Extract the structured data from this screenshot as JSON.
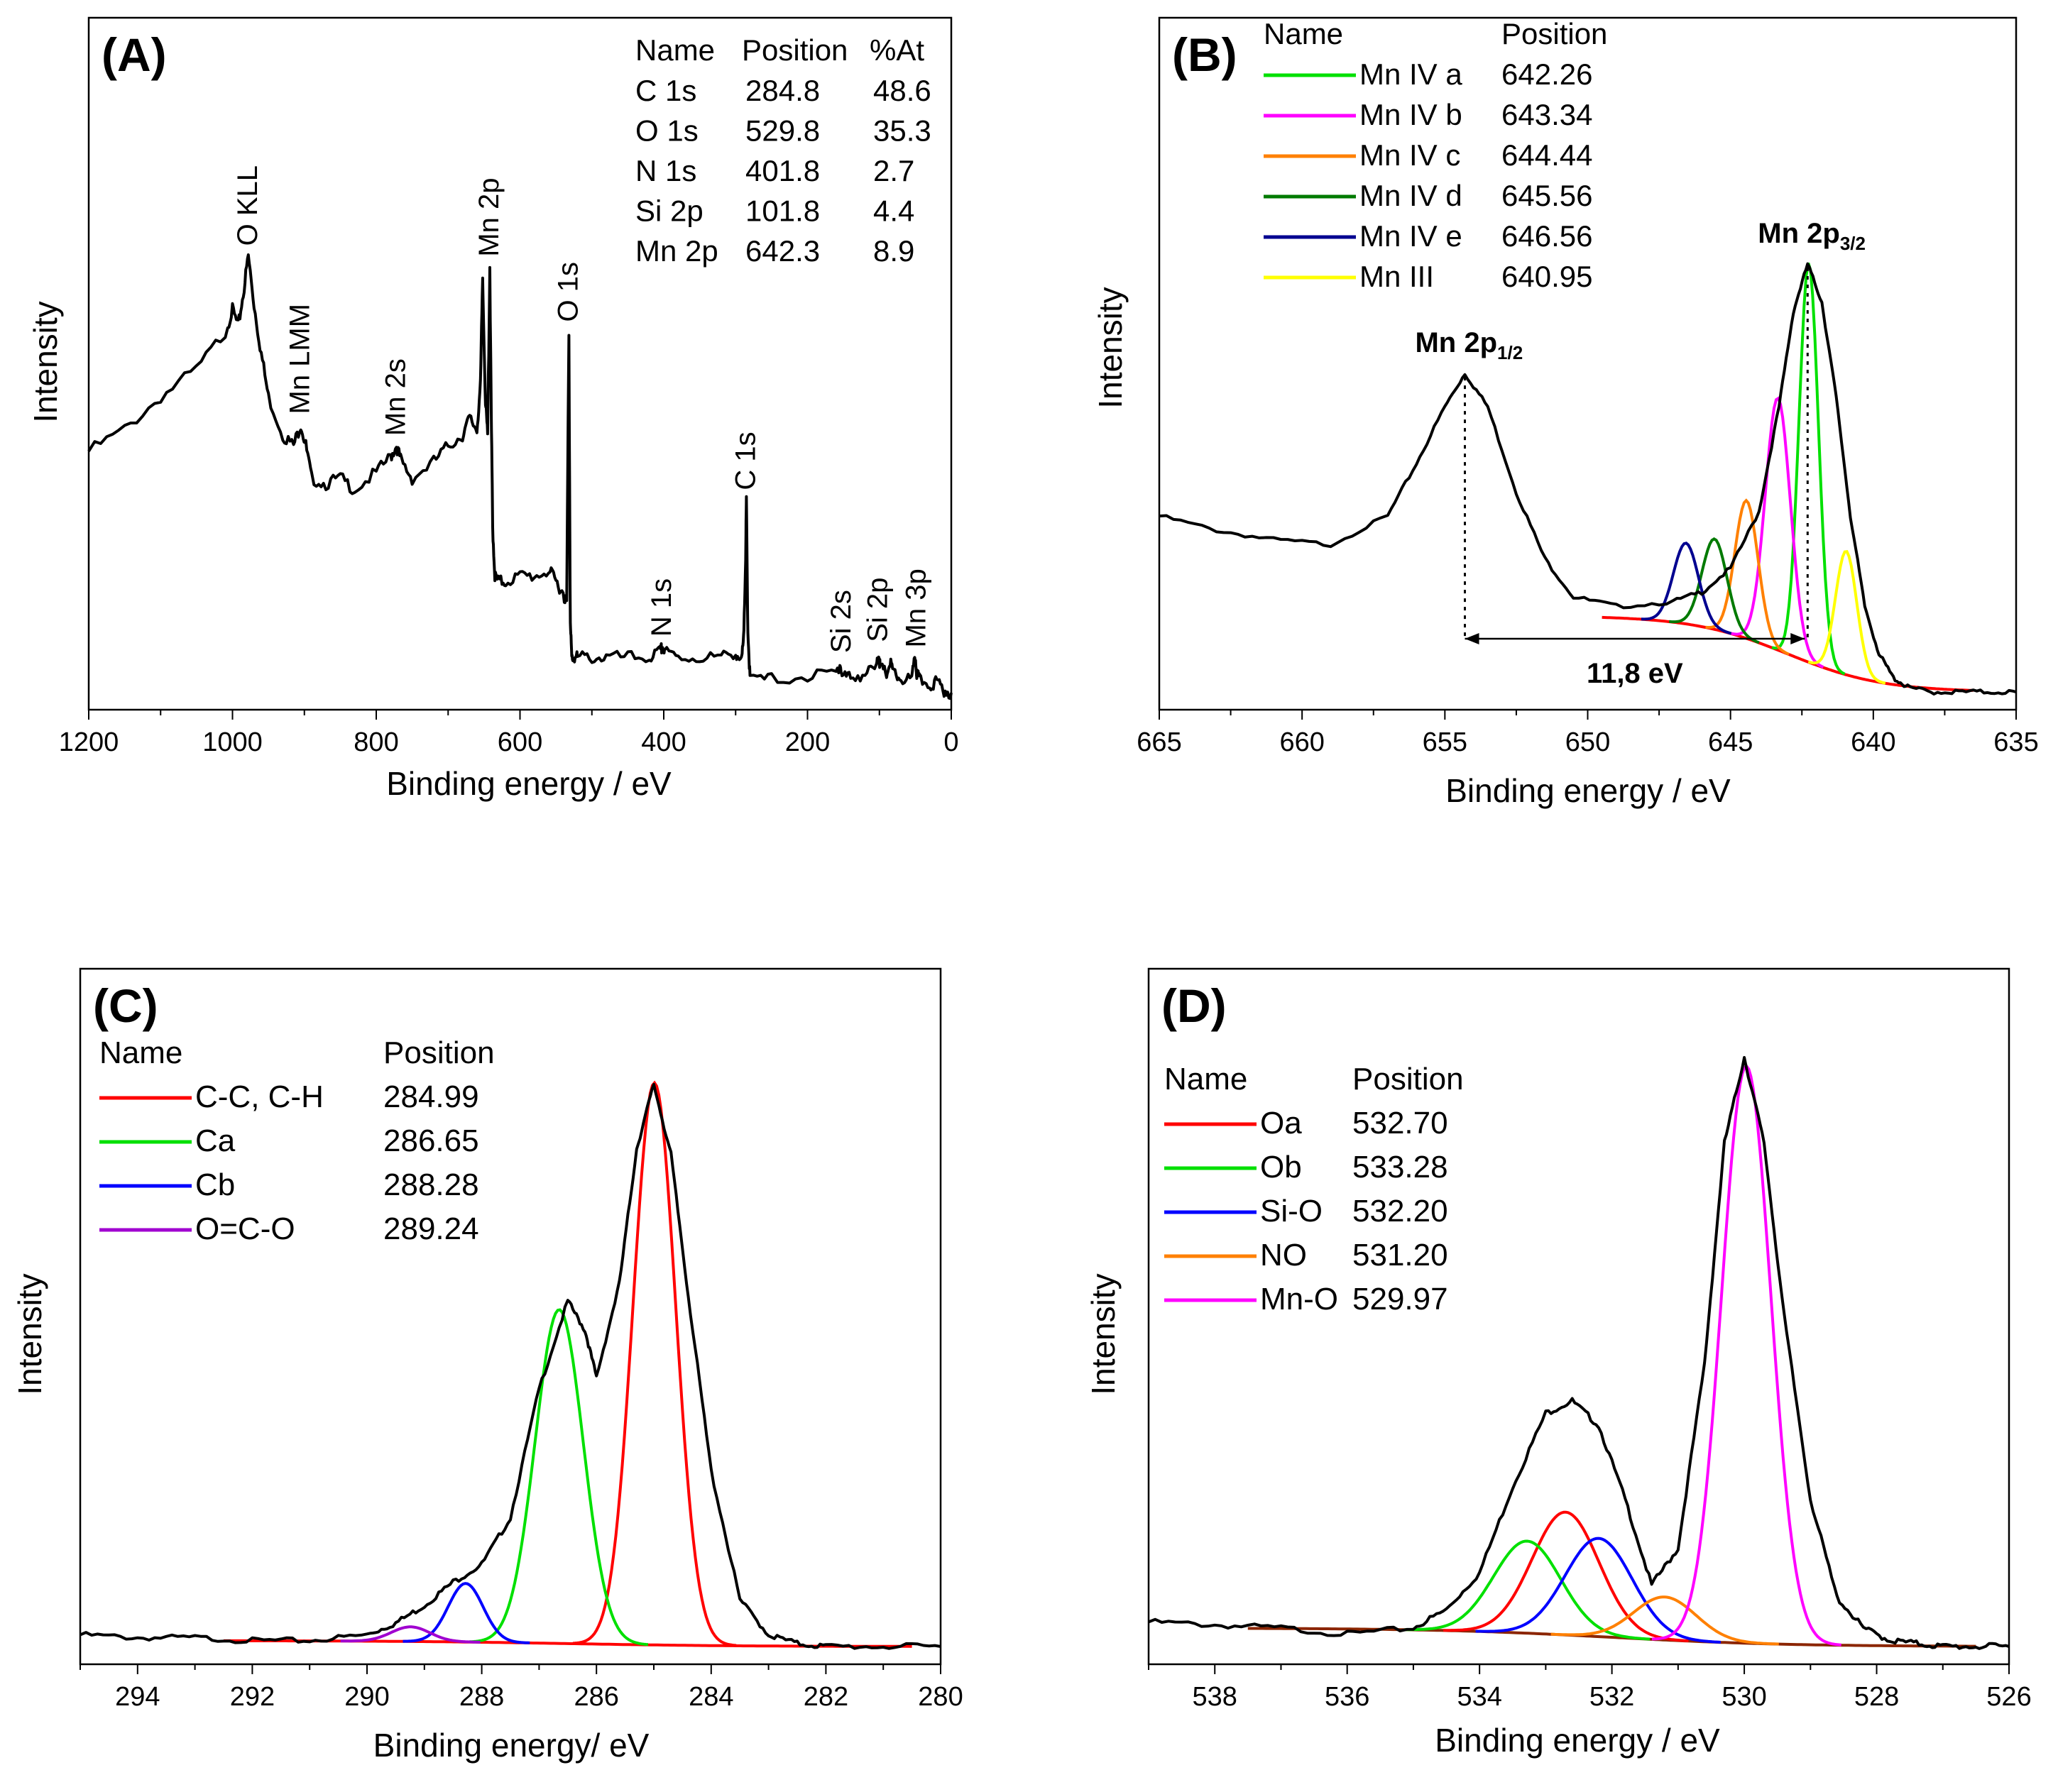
{
  "chart_data": [
    {
      "panel": "(A)",
      "type": "line",
      "title": "",
      "xlabel": "Binding energy / eV",
      "ylabel": "Intensity",
      "xlim": [
        1200,
        0
      ],
      "ylim": [
        0,
        100
      ],
      "x_reversed": true,
      "xticks": [
        1200,
        1000,
        800,
        600,
        400,
        200,
        0
      ],
      "series": [
        {
          "name": "survey spectrum",
          "color": "#000000",
          "x": [
            1200,
            1150,
            1100,
            1050,
            1010,
            1000,
            992,
            985,
            978,
            970,
            960,
            950,
            930,
            915,
            905,
            898,
            890,
            870,
            850,
            830,
            800,
            780,
            772,
            765,
            750,
            720,
            700,
            680,
            670,
            660,
            655,
            652,
            648,
            645,
            642,
            640,
            638,
            635,
            630,
            620,
            600,
            580,
            560,
            550,
            540,
            535,
            532,
            530,
            528,
            525,
            520,
            500,
            480,
            450,
            420,
            405,
            402,
            399,
            380,
            350,
            320,
            300,
            292,
            289,
            286,
            285,
            283,
            280,
            250,
            200,
            160,
            155,
            152,
            140,
            120,
            104,
            101,
            99,
            90,
            85,
            80,
            70,
            55,
            50,
            48,
            45,
            30,
            20,
            10,
            0
          ],
          "y": [
            45,
            49,
            55,
            60,
            67,
            71,
            68,
            74,
            81,
            72,
            63,
            55,
            48,
            46,
            50,
            46,
            40,
            39,
            40,
            38,
            41,
            44,
            46,
            43,
            40,
            43,
            46,
            48,
            51,
            49,
            57,
            77,
            54,
            48,
            79,
            52,
            31,
            22,
            21,
            21,
            22,
            22,
            23,
            21,
            19,
            17,
            67,
            13,
            7,
            7,
            7,
            7,
            7,
            7,
            7,
            8,
            9,
            8,
            7,
            7,
            7,
            8,
            6,
            10,
            26,
            36,
            12,
            3,
            3,
            3.5,
            4,
            6,
            3.5,
            3.5,
            4,
            5,
            8,
            5,
            4,
            6,
            4,
            3,
            3,
            7,
            4,
            3,
            2,
            2.5,
            1,
            0.5
          ]
        }
      ],
      "legend_table": {
        "headers": [
          "Name",
          "Position",
          "%At"
        ],
        "rows": [
          [
            "C 1s",
            "284.8",
            "48.6"
          ],
          [
            "O 1s",
            "529.8",
            "35.3"
          ],
          [
            "N 1s",
            "401.8",
            "2.7"
          ],
          [
            "Si 2p",
            "101.8",
            "4.4"
          ],
          [
            "Mn 2p",
            "642.3",
            "8.9"
          ]
        ]
      },
      "annotations": [
        {
          "text": "O KLL",
          "x": 978,
          "y": 81
        },
        {
          "text": "Mn LMM",
          "x": 905,
          "y": 50
        },
        {
          "text": "Mn 2s",
          "x": 772,
          "y": 46
        },
        {
          "text": "Mn 2p",
          "x": 642,
          "y": 79
        },
        {
          "text": "O 1s",
          "x": 532,
          "y": 67
        },
        {
          "text": "N 1s",
          "x": 402,
          "y": 9
        },
        {
          "text": "C 1s",
          "x": 285,
          "y": 36
        },
        {
          "text": "Si 2s",
          "x": 152,
          "y": 6
        },
        {
          "text": "Si 2p",
          "x": 101,
          "y": 8
        },
        {
          "text": "Mn 3p",
          "x": 48,
          "y": 7
        }
      ]
    },
    {
      "panel": "(B)",
      "type": "line",
      "title": "",
      "xlabel": "Binding energy / eV",
      "ylabel": "Intensity",
      "xlim": [
        665,
        635
      ],
      "ylim": [
        0,
        100
      ],
      "x_reversed": true,
      "xticks": [
        665,
        660,
        655,
        650,
        645,
        640,
        635
      ],
      "series": [
        {
          "name": "Envelope",
          "color": "#000000",
          "x": [
            665,
            663,
            661,
            659,
            657,
            656,
            655,
            654.3,
            653.5,
            652.5,
            651.5,
            650.5,
            649,
            647,
            646,
            645,
            644,
            643.3,
            642.8,
            642.3,
            641.8,
            641.3,
            640.8,
            640.3,
            639.8,
            639.3,
            638.8,
            638,
            637,
            636,
            635
          ],
          "y": [
            37,
            34,
            32,
            31,
            37,
            48,
            60,
            67,
            60,
            42,
            28,
            20,
            18,
            19,
            21,
            26,
            38,
            60,
            80,
            90,
            82,
            62,
            37,
            18,
            8,
            3,
            1,
            0,
            0,
            0,
            0
          ]
        },
        {
          "name": "Mn IV a",
          "color": "#00e000",
          "center": 642.26,
          "height": 84,
          "width": 0.5
        },
        {
          "name": "Mn IV b",
          "color": "#ff00ff",
          "center": 643.34,
          "height": 53,
          "width": 0.65
        },
        {
          "name": "Mn IV c",
          "color": "#ff8000",
          "center": 644.44,
          "height": 29,
          "width": 0.6
        },
        {
          "name": "Mn IV d",
          "color": "#007a00",
          "center": 645.56,
          "height": 19,
          "width": 0.65
        },
        {
          "name": "Mn IV e",
          "color": "#000090",
          "center": 646.56,
          "height": 17,
          "width": 0.65
        },
        {
          "name": "Mn III",
          "color": "#ffff00",
          "center": 640.95,
          "height": 26,
          "width": 0.55
        }
      ],
      "baseline": {
        "color": "#ff0000",
        "y_start": 16,
        "x_start": 648.0,
        "x_end": 638.0
      },
      "legend_headers": [
        "Name",
        "Position"
      ],
      "legend": [
        {
          "name": "Mn IV a",
          "position": "642.26",
          "color": "#00e000"
        },
        {
          "name": "Mn IV b",
          "position": "643.34",
          "color": "#ff00ff"
        },
        {
          "name": "Mn IV c",
          "position": "644.44",
          "color": "#ff8000"
        },
        {
          "name": "Mn IV d",
          "position": "645.56",
          "color": "#007a00"
        },
        {
          "name": "Mn IV e",
          "position": "646.56",
          "color": "#000090"
        },
        {
          "name": "Mn III",
          "position": "640.95",
          "color": "#ffff00"
        }
      ],
      "peak_labels": [
        {
          "base": "Mn 2p",
          "sub": "1/2",
          "x": 654.3,
          "y": 67
        },
        {
          "base": "Mn 2p",
          "sub": "3/2",
          "x": 642.3,
          "y": 90
        }
      ],
      "splitting": {
        "label": "11,8 eV",
        "from": 654.3,
        "to": 642.4,
        "y": 10
      }
    },
    {
      "panel": "(C)",
      "type": "line",
      "title": "",
      "xlabel": "Binding energy/ eV",
      "ylabel": "Intensity",
      "xlim": [
        295,
        280
      ],
      "ylim": [
        0,
        100
      ],
      "x_reversed": true,
      "xticks": [
        294,
        292,
        290,
        288,
        286,
        284,
        282,
        280
      ],
      "series": [
        {
          "name": "Envelope",
          "color": "#000000",
          "x": [
            295,
            294,
            293,
            292,
            291,
            290,
            289.5,
            289,
            288.5,
            288,
            287.5,
            287,
            286.5,
            286.2,
            286,
            285.6,
            285.3,
            285,
            284.7,
            284.4,
            284,
            283.5,
            283,
            282.5,
            282,
            281,
            280
          ],
          "y": [
            2,
            1.5,
            1.5,
            1,
            1,
            2,
            4,
            7,
            11,
            14,
            22,
            44,
            59,
            54,
            46,
            62,
            85,
            96,
            84,
            60,
            30,
            8,
            2,
            0.5,
            0,
            0,
            0
          ]
        },
        {
          "name": "C-C, C-H",
          "color": "#ff0000",
          "center": 284.99,
          "height": 96,
          "width": 0.55
        },
        {
          "name": "Ca",
          "color": "#00e000",
          "center": 286.65,
          "height": 57,
          "width": 0.62
        },
        {
          "name": "Cb",
          "color": "#0000ff",
          "center": 288.28,
          "height": 10,
          "width": 0.45
        },
        {
          "name": "O=C-O",
          "color": "#a000d0",
          "center": 289.24,
          "height": 2.5,
          "width": 0.5
        }
      ],
      "baseline": {
        "color": "#ff0000",
        "y_start": 1,
        "x_start": 291,
        "x_end": 282
      },
      "legend_headers": [
        "Name",
        "Position"
      ],
      "legend": [
        {
          "name": "C-C, C-H",
          "position": "284.99",
          "color": "#ff0000"
        },
        {
          "name": "Ca",
          "position": "286.65",
          "color": "#00e000"
        },
        {
          "name": "Cb",
          "position": "288.28",
          "color": "#0000ff"
        },
        {
          "name": "O=C-O",
          "position": "289.24",
          "color": "#a000d0"
        }
      ]
    },
    {
      "panel": "(D)",
      "type": "line",
      "title": "",
      "xlabel": "Binding energy / eV",
      "ylabel": "Intensity",
      "xlim": [
        539,
        526
      ],
      "ylim": [
        0,
        100
      ],
      "x_reversed": true,
      "xticks": [
        538,
        536,
        534,
        532,
        530,
        528,
        526
      ],
      "series": [
        {
          "name": "Envelope",
          "color": "#000000",
          "x": [
            539,
            538,
            537,
            536,
            535,
            534.5,
            534,
            533.5,
            533,
            532.6,
            532.2,
            531.8,
            531.4,
            531,
            530.6,
            530.3,
            530,
            529.7,
            529.4,
            529,
            528.6,
            528.2,
            527.8,
            527.4,
            527,
            526.5,
            526
          ],
          "y": [
            4,
            3.5,
            3,
            2,
            3,
            6,
            12,
            26,
            38,
            40,
            36,
            24,
            10,
            16,
            46,
            82,
            96,
            82,
            54,
            24,
            8,
            3,
            1,
            0.5,
            0,
            0,
            0
          ]
        },
        {
          "name": "Oa",
          "color": "#ff0000",
          "center": 532.7,
          "height": 20,
          "width": 0.75
        },
        {
          "name": "Ob",
          "color": "#00e000",
          "center": 533.28,
          "height": 15,
          "width": 0.75
        },
        {
          "name": "Si-O",
          "color": "#0000ff",
          "center": 532.2,
          "height": 16,
          "width": 0.75
        },
        {
          "name": "NO",
          "color": "#ff8000",
          "center": 531.2,
          "height": 7,
          "width": 0.7
        },
        {
          "name": "Mn-O",
          "color": "#ff00ff",
          "center": 529.97,
          "height": 94,
          "width": 0.55
        }
      ],
      "baseline": {
        "color": "#8b2500",
        "y_start": 3,
        "x_start": 536,
        "x_end": 528
      },
      "legend_headers": [
        "Name",
        "Position"
      ],
      "legend": [
        {
          "name": "Oa",
          "position": "532.70",
          "color": "#ff0000"
        },
        {
          "name": "Ob",
          "position": "533.28",
          "color": "#00e000"
        },
        {
          "name": "Si-O",
          "position": "532.20",
          "color": "#0000ff"
        },
        {
          "name": "NO",
          "position": "531.20",
          "color": "#ff8000"
        },
        {
          "name": "Mn-O",
          "position": "529.97",
          "color": "#ff00ff"
        }
      ]
    }
  ]
}
